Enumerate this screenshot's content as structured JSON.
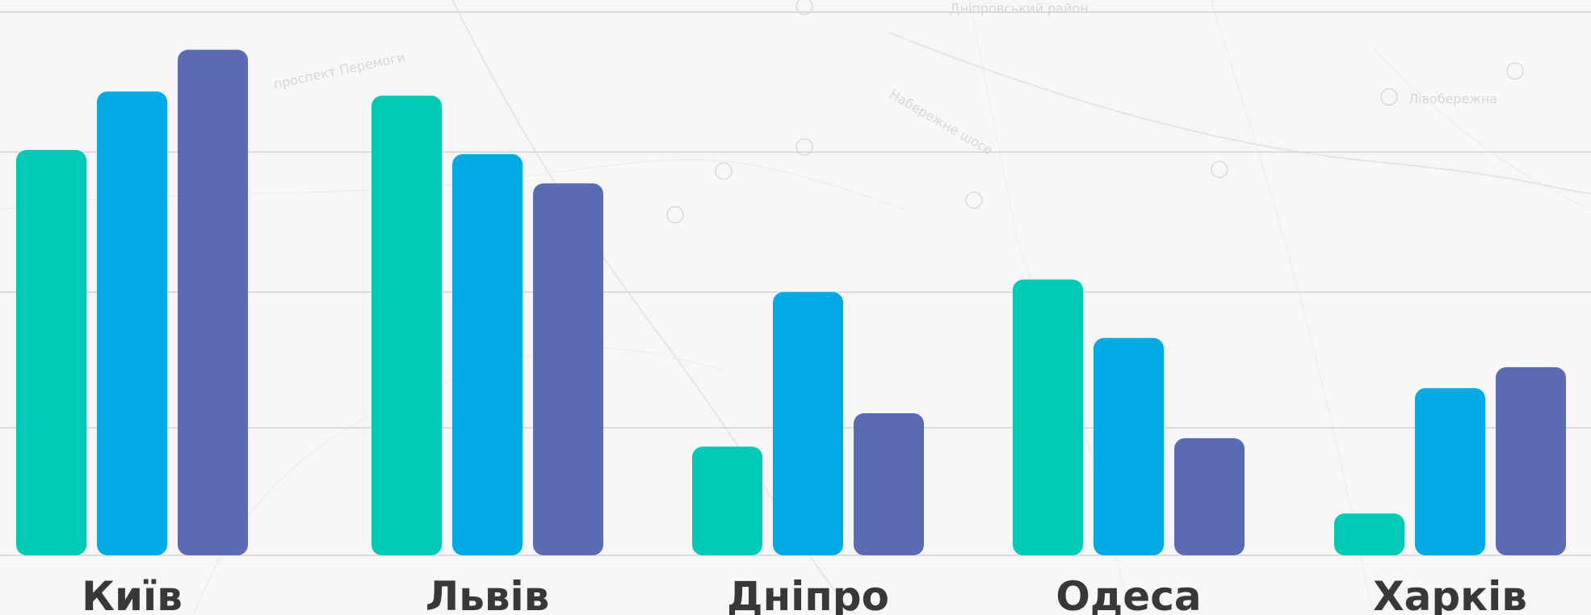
{
  "chart_data": {
    "type": "bar",
    "categories": [
      "Київ",
      "Львів",
      "Дніпро",
      "Одеса",
      "Харків"
    ],
    "series": [
      {
        "values": [
          97,
          110,
          26,
          66,
          10
        ],
        "color": "#00c9b4"
      },
      {
        "values": [
          111,
          96,
          63,
          52,
          40
        ],
        "color": "#00aae2"
      },
      {
        "values": [
          121,
          89,
          34,
          28,
          45
        ],
        "color": "#5a6bb3"
      }
    ],
    "ylim": [
      0,
      130
    ],
    "gridline_values": [
      0,
      30.5,
      63,
      96.5,
      130
    ],
    "grid": true,
    "legend": "none",
    "background_labels": [
      "Дніпровський район",
      "Набережне шосе",
      "проспект Перемоги",
      "Лівобережна"
    ]
  }
}
